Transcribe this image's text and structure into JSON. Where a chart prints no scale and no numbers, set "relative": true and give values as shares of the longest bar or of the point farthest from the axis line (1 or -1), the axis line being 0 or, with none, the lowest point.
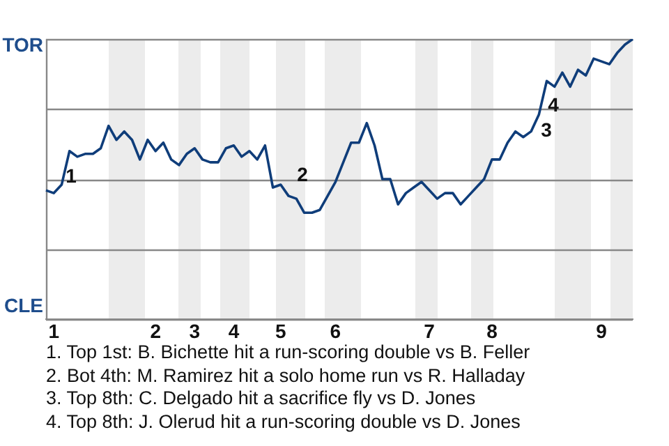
{
  "chart_data": {
    "type": "line",
    "relative": true,
    "categories": [
      null,
      "1",
      null,
      null,
      null,
      null,
      null,
      null,
      null,
      null,
      null,
      null,
      null,
      null,
      "2",
      null,
      null,
      null,
      null,
      "3",
      null,
      null,
      null,
      null,
      "4",
      null,
      null,
      null,
      null,
      null,
      "5",
      null,
      null,
      null,
      null,
      null,
      null,
      "6",
      null,
      null,
      null,
      null,
      null,
      null,
      null,
      null,
      null,
      null,
      null,
      "7",
      null,
      null,
      null,
      null,
      null,
      null,
      null,
      "8",
      null,
      null,
      null,
      null,
      null,
      null,
      null,
      null,
      null,
      null,
      null,
      null,
      null,
      "9",
      null,
      null,
      null,
      null
    ],
    "series": [
      {
        "color": "#0f3d7a",
        "values": [
          0.46,
          0.45,
          0.48,
          0.6,
          0.58,
          0.59,
          0.59,
          0.61,
          0.69,
          0.64,
          0.67,
          0.64,
          0.57,
          0.64,
          0.6,
          0.63,
          0.57,
          0.55,
          0.59,
          0.61,
          0.57,
          0.56,
          0.56,
          0.61,
          0.62,
          0.58,
          0.6,
          0.57,
          0.62,
          0.47,
          0.48,
          0.44,
          0.43,
          0.38,
          0.38,
          0.39,
          0.44,
          0.49,
          0.56,
          0.63,
          0.63,
          0.7,
          0.62,
          0.5,
          0.5,
          0.41,
          0.45,
          0.47,
          0.49,
          0.46,
          0.43,
          0.45,
          0.45,
          0.41,
          0.44,
          0.47,
          0.5,
          0.57,
          0.57,
          0.63,
          0.67,
          0.65,
          0.67,
          0.73,
          0.85,
          0.83,
          0.88,
          0.83,
          0.89,
          0.87,
          0.93,
          0.92,
          0.91,
          0.95,
          0.98,
          1
        ]
      }
    ],
    "grid": "y",
    "legend": false,
    "marker": "none",
    "line_style": "solid",
    "annotations": [
      "TOR",
      "CLE",
      "1",
      "2",
      "3",
      "4",
      "1. Top 1st: B. Bichette hit a run-scoring double vs B. Feller",
      "2. Bot 4th: M. Ramirez hit a solo home run vs R. Halladay",
      "3. Top 8th: C. Delgado hit a sacrifice fly vs D. Jones",
      "4. Top 8th: J. Olerud hit a run-scoring double vs D. Jones"
    ]
  }
}
